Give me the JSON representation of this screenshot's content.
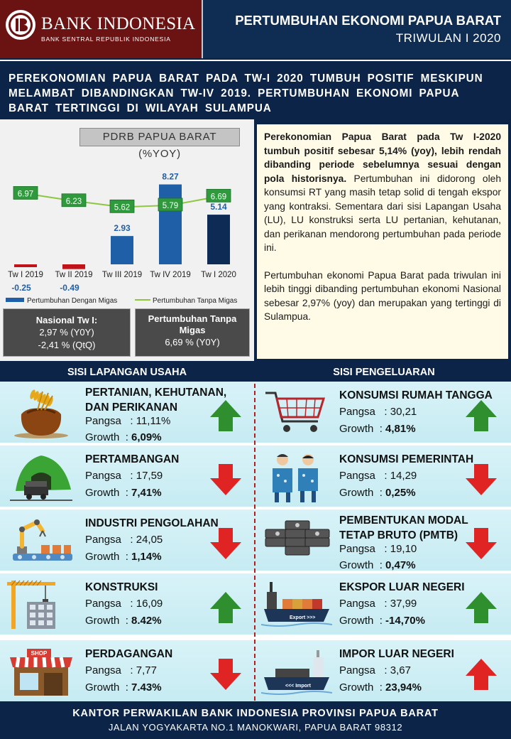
{
  "header": {
    "bank_name": "BANK INDONESIA",
    "bank_sub": "BANK SENTRAL REPUBLIK INDONESIA",
    "title": "PERTUMBUHAN EKONOMI PAPUA BARAT",
    "period": "TRIWULAN I 2020"
  },
  "headline": "PEREKONOMIAN PAPUA BARAT PADA TW-I 2020 TUMBUH POSITIF MESKIPUN MELAMBAT DIBANDINGKAN TW-IV 2019. PERTUMBUHAN EKONOMI PAPUA BARAT TERTINGGI DI WILAYAH SULAMPUA",
  "chart_data": {
    "type": "bar",
    "title": "PDRB PAPUA BARAT (%YOY)",
    "categories": [
      "Tw I 2019",
      "Tw II 2019",
      "Tw III 2019",
      "Tw IV 2019",
      "Tw I 2020"
    ],
    "series": [
      {
        "name": "Pertumbuhan Dengan Migas",
        "type": "bar",
        "values": [
          -0.25,
          -0.49,
          2.93,
          8.27,
          5.14
        ],
        "labels": [
          "-0.25",
          "-0.49",
          "2.93",
          "8.27",
          "5.14"
        ],
        "colors": [
          "#c0141b",
          "#c0141b",
          "#1f5fa8",
          "#1f5fa8",
          "#0d2b55"
        ]
      },
      {
        "name": "Pertumbuhan Tanpa Migas",
        "type": "line",
        "values": [
          6.97,
          6.23,
          5.62,
          5.79,
          6.69
        ],
        "labels": [
          "6.97",
          "6.23",
          "5.62",
          "5.79",
          "6.69"
        ],
        "color": "#8dc63f"
      }
    ],
    "xlabel": "",
    "ylabel": "",
    "ylim": [
      -1,
      9
    ],
    "grid": false,
    "legend": "bottom"
  },
  "info": {
    "nasional_title": "Nasional Tw I:",
    "nasional_yoy": "2,97 % (Y0Y)",
    "nasional_qtq": "-2,41 % (QtQ)",
    "tanpa_migas_title": "Pertumbuhan Tanpa Migas",
    "tanpa_migas_value": "6,69 % (Y0Y)"
  },
  "text": {
    "p1_bold": "Perekonomian Papua Barat pada Tw I-2020 tumbuh positif sebesar 5,14% (yoy), lebih rendah dibanding periode sebelumnya sesuai dengan pola historisnya.",
    "p1_rest": " Pertumbuhan ini didorong oleh konsumsi RT yang masih tetap solid di tengah ekspor yang kontraksi. Sementara dari sisi Lapangan Usaha (LU), LU konstruksi serta LU pertanian, kehutanan, dan perikanan mendorong pertumbuhan pada periode ini.",
    "p2": "Pertumbuhan ekonomi Papua Barat pada triwulan ini lebih tinggi dibanding pertumbuhan ekonomi Nasional sebesar 2,97% (yoy) dan merupakan yang tertinggi di Sulampua."
  },
  "sections": {
    "left": "SISI LAPANGAN USAHA",
    "right": "SISI PENGELUARAN"
  },
  "labels": {
    "pangsa": "Pangsa",
    "growth": "Growth"
  },
  "left_rows": [
    {
      "name": "PERTANIAN, KEHUTANAN,",
      "name2": "DAN PERIKANAN",
      "pangsa": ": 11,11%",
      "growth": "6,09%",
      "trend": "up"
    },
    {
      "name": "PERTAMBANGAN",
      "name2": "",
      "pangsa": ": 17,59",
      "growth": "7,41%",
      "trend": "down"
    },
    {
      "name": "INDUSTRI PENGOLAHAN",
      "name2": "",
      "pangsa": ": 24,05",
      "growth": "1,14%",
      "trend": "down"
    },
    {
      "name": "KONSTRUKSI",
      "name2": "",
      "pangsa": ": 16,09",
      "growth": "8.42%",
      "trend": "up"
    },
    {
      "name": "PERDAGANGAN",
      "name2": "",
      "pangsa": ": 7,77",
      "growth": "7.43%",
      "trend": "down"
    }
  ],
  "right_rows": [
    {
      "name": "KONSUMSI RUMAH TANGGA",
      "name2": "",
      "pangsa": ": 30,21",
      "growth": "4,81%",
      "trend": "up"
    },
    {
      "name": "KONSUMSI PEMERINTAH",
      "name2": "",
      "pangsa": ": 14,29",
      "growth": "0,25%",
      "trend": "down"
    },
    {
      "name": "PEMBENTUKAN MODAL",
      "name2": "TETAP BRUTO (PMTB)",
      "pangsa": ": 19,10",
      "growth": "0,47%",
      "trend": "down"
    },
    {
      "name": "EKSPOR LUAR NEGERI",
      "name2": "",
      "pangsa": ": 37,99",
      "growth": "-14,70%",
      "trend": "up"
    },
    {
      "name": "IMPOR LUAR NEGERI",
      "name2": "",
      "pangsa": ": 3,67",
      "growth": "23,94%",
      "trend": "up-red"
    }
  ],
  "icons": {
    "left": [
      "rice-sack-icon",
      "mining-cart-icon",
      "factory-robot-arm-icon",
      "construction-crane-icon",
      "shop-icon"
    ],
    "right": [
      "shopping-cart-icon",
      "civil-servants-icon",
      "money-stack-icon",
      "export-ship-icon",
      "import-ship-icon"
    ],
    "ship_texts": [
      "Export >>>",
      "<<< Import"
    ],
    "shop_sign": "SHOP"
  },
  "footer": {
    "line1": "KANTOR PERWAKILAN BANK INDONESIA PROVINSI PAPUA BARAT",
    "line2": "JALAN YOGYAKARTA NO.1 MANOKWARI, PAPUA BARAT 98312"
  }
}
